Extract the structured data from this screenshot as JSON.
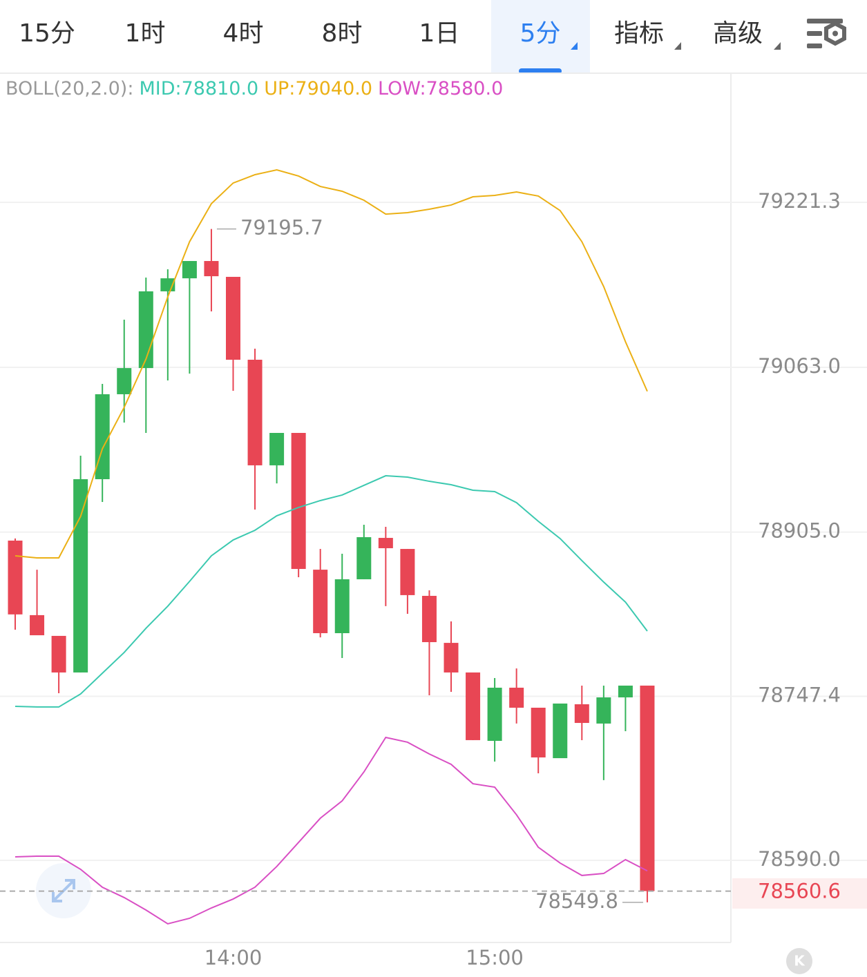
{
  "tabs": [
    "15分",
    "1时",
    "4时",
    "8时",
    "1日",
    "5分",
    "指标",
    "高级"
  ],
  "selected_tab": 5,
  "chart_data": {
    "type": "candlestick",
    "boll_label": "BOLL(20,2.0):",
    "categories": [
      null,
      null,
      null,
      null,
      null,
      null,
      null,
      null,
      null,
      null,
      "14:00",
      null,
      null,
      null,
      null,
      null,
      null,
      null,
      null,
      null,
      null,
      null,
      "15:00",
      null,
      null,
      null,
      null,
      null,
      null,
      null
    ],
    "open": [
      78896.8,
      78825.3,
      78805.4,
      78770.3,
      78955.7,
      79037.2,
      79062.3,
      79135.9,
      79148.4,
      79165.0,
      79149.8,
      79070.3,
      78969.0,
      79000.1,
      78868.9,
      78808.0,
      78859.7,
      78899.4,
      78888.8,
      78843.8,
      78798.7,
      78770.3,
      78704.7,
      78755.7,
      78736.5,
      78688.1,
      78739.8,
      78721.3,
      78746.4,
      78757.7
    ],
    "high": [
      78898.8,
      78868.9,
      78805.4,
      78978.2,
      79047.1,
      79108.7,
      79149.1,
      79157.1,
      79165.0,
      79195.7,
      79149.8,
      79080.9,
      79000.1,
      79000.1,
      78888.8,
      78884.2,
      78912.0,
      78910.0,
      78888.8,
      78849.1,
      78819.3,
      78770.3,
      78765.0,
      78774.2,
      78736.5,
      78740.5,
      78757.7,
      78757.7,
      78757.7,
      78757.7
    ],
    "low": [
      78811.3,
      78806.0,
      78750.4,
      78770.3,
      78933.9,
      79010.0,
      79000.1,
      79050.4,
      79057.0,
      79116.7,
      79040.5,
      78926.6,
      78951.7,
      78861.7,
      78804.0,
      78784.2,
      78859.7,
      78833.9,
      78826.6,
      78748.4,
      78751.7,
      78705.4,
      78684.8,
      78721.3,
      78673.6,
      78688.1,
      78705.4,
      78667.0,
      78714.0,
      78549.8
    ],
    "close": [
      78826.0,
      78806.0,
      78770.3,
      78955.7,
      79037.2,
      79062.3,
      79135.9,
      79148.4,
      79165.0,
      79150.4,
      79070.3,
      78969.0,
      79000.1,
      78869.6,
      78808.0,
      78859.7,
      78900.1,
      78889.5,
      78844.5,
      78799.4,
      78770.3,
      78705.4,
      78755.7,
      78736.5,
      78688.8,
      78740.5,
      78721.9,
      78746.4,
      78757.7,
      78560.6
    ],
    "up_color": "#35b45a",
    "down_color": "#e84654",
    "lines": [
      {
        "legend_label": "MID:78810.0",
        "color": "#3cc9b0",
        "values": [
          78737.8,
          78737.2,
          78737.2,
          78749.7,
          78769.6,
          78789.5,
          78812.7,
          78833.9,
          78857.7,
          78882.2,
          78897.4,
          78906.7,
          78920.6,
          78928.6,
          78935.2,
          78940.5,
          78949.8,
          78959.0,
          78957.7,
          78953.7,
          78950.4,
          78945.1,
          78943.8,
          78933.2,
          78915.3,
          78898.8,
          78877.6,
          78857.0,
          78837.8,
          78810.0
        ]
      },
      {
        "legend_label": "UP:79040.0",
        "color": "#ebb015",
        "values": [
          78882.2,
          78880.2,
          78880.2,
          78920.0,
          78984.9,
          79024.6,
          79071.0,
          79130.6,
          79183.5,
          79220.0,
          79239.8,
          79247.8,
          79252.4,
          79246.5,
          79236.5,
          79231.9,
          79223.3,
          79210.0,
          79211.4,
          79214.7,
          79218.7,
          79226.6,
          79227.9,
          79231.2,
          79227.3,
          79213.4,
          79183.5,
          79140.5,
          79087.5,
          79040.0
        ]
      },
      {
        "legend_label": "LOW:78580.0",
        "color": "#d94fc4",
        "values": [
          78593.4,
          78594.1,
          78594.1,
          78581.5,
          78564.3,
          78554.4,
          78542.4,
          78529.2,
          78534.5,
          78544.4,
          78553.0,
          78564.3,
          78584.2,
          78607.3,
          78630.5,
          78647.1,
          78674.9,
          78708.0,
          78703.4,
          78692.1,
          78682.2,
          78663.6,
          78660.3,
          78633.8,
          78602.7,
          78587.5,
          78575.6,
          78577.5,
          78590.8,
          78580.0
        ]
      }
    ],
    "ylim": [
      78511.3,
      79344.5
    ],
    "yticks": [
      79221.3,
      {
        "value": 79063.0,
        "label": "79063.0"
      },
      {
        "value": 78905.0,
        "label": "78905.0"
      },
      78747.4,
      {
        "value": 78590.0,
        "label": "78590.0"
      }
    ],
    "grid": true
  }
}
